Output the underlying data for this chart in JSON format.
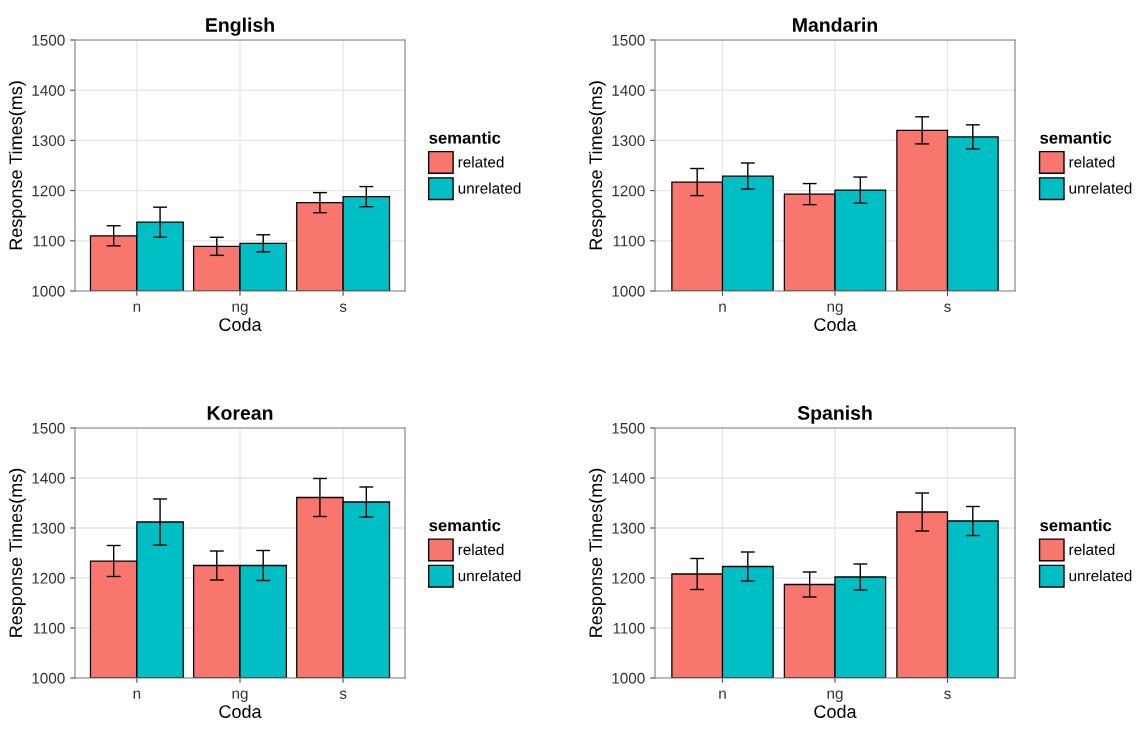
{
  "chart_data": [
    {
      "type": "bar",
      "title": "English",
      "xlabel": "Coda",
      "ylabel": "Response Times(ms)",
      "legend_title": "semantic",
      "categories": [
        "n",
        "ng",
        "s"
      ],
      "ylim": [
        1000,
        1500
      ],
      "yticks": [
        1000,
        1100,
        1200,
        1300,
        1400,
        1500
      ],
      "grid": true,
      "legend": "right",
      "series": [
        {
          "name": "related",
          "color": "#f8766d",
          "values": [
            1110,
            1089,
            1176
          ],
          "errors": [
            20,
            18,
            20
          ]
        },
        {
          "name": "unrelated",
          "color": "#00bfc4",
          "values": [
            1137,
            1095,
            1188
          ],
          "errors": [
            30,
            17,
            20
          ]
        }
      ]
    },
    {
      "type": "bar",
      "title": "Mandarin",
      "xlabel": "Coda",
      "ylabel": "Response Times(ms)",
      "legend_title": "semantic",
      "categories": [
        "n",
        "ng",
        "s"
      ],
      "ylim": [
        1000,
        1500
      ],
      "yticks": [
        1000,
        1100,
        1200,
        1300,
        1400,
        1500
      ],
      "grid": true,
      "legend": "right",
      "series": [
        {
          "name": "related",
          "color": "#f8766d",
          "values": [
            1217,
            1193,
            1320
          ],
          "errors": [
            27,
            21,
            27
          ]
        },
        {
          "name": "unrelated",
          "color": "#00bfc4",
          "values": [
            1229,
            1201,
            1307
          ],
          "errors": [
            26,
            26,
            24
          ]
        }
      ]
    },
    {
      "type": "bar",
      "title": "Korean",
      "xlabel": "Coda",
      "ylabel": "Response Times(ms)",
      "legend_title": "semantic",
      "categories": [
        "n",
        "ng",
        "s"
      ],
      "ylim": [
        1000,
        1500
      ],
      "yticks": [
        1000,
        1100,
        1200,
        1300,
        1400,
        1500
      ],
      "grid": true,
      "legend": "right",
      "series": [
        {
          "name": "related",
          "color": "#f8766d",
          "values": [
            1234,
            1225,
            1361
          ],
          "errors": [
            31,
            29,
            38
          ]
        },
        {
          "name": "unrelated",
          "color": "#00bfc4",
          "values": [
            1312,
            1225,
            1352
          ],
          "errors": [
            46,
            30,
            30
          ]
        }
      ]
    },
    {
      "type": "bar",
      "title": "Spanish",
      "xlabel": "Coda",
      "ylabel": "Response Times(ms)",
      "legend_title": "semantic",
      "categories": [
        "n",
        "ng",
        "s"
      ],
      "ylim": [
        1000,
        1500
      ],
      "yticks": [
        1000,
        1100,
        1200,
        1300,
        1400,
        1500
      ],
      "grid": true,
      "legend": "right",
      "series": [
        {
          "name": "related",
          "color": "#f8766d",
          "values": [
            1208,
            1187,
            1332
          ],
          "errors": [
            31,
            25,
            38
          ]
        },
        {
          "name": "unrelated",
          "color": "#00bfc4",
          "values": [
            1223,
            1202,
            1314
          ],
          "errors": [
            29,
            26,
            29
          ]
        }
      ]
    }
  ]
}
